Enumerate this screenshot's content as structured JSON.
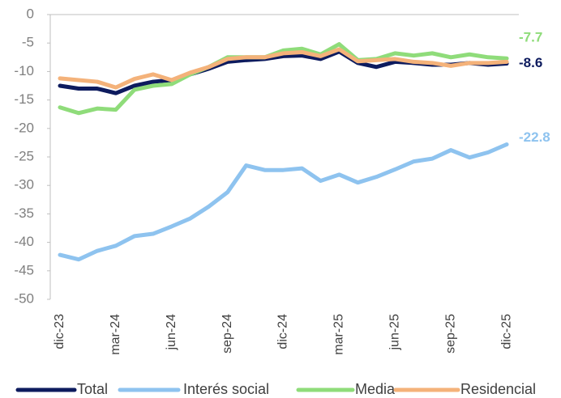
{
  "chart_data": {
    "type": "line",
    "categories": [
      "dic-23",
      null,
      null,
      "mar-24",
      null,
      null,
      "jun-24",
      null,
      null,
      "sep-24",
      null,
      null,
      "dic-24",
      null,
      null,
      "mar-25",
      null,
      null,
      "jun-25",
      null,
      null,
      "sep-25",
      null,
      null,
      "dic-25"
    ],
    "series": [
      {
        "name": "Total",
        "color": "#0d1b5e",
        "last_label": true,
        "values": [
          -12.5,
          -13,
          -13,
          -13.8,
          -12.5,
          -11.8,
          -11.5,
          -10.5,
          -9.5,
          -8.3,
          -8,
          -7.8,
          -7.3,
          -7.2,
          -7.8,
          -6.5,
          -8.5,
          -9.2,
          -8.3,
          -8.5,
          -8.8,
          -8.8,
          -8.5,
          -8.8,
          -8.6
        ]
      },
      {
        "name": "Interés social",
        "color": "#8ec3ef",
        "last_label": true,
        "values": [
          -42.2,
          -43,
          -41.5,
          -40.6,
          -38.9,
          -38.5,
          -37.2,
          -35.8,
          -33.7,
          -31.2,
          -26.5,
          -27.3,
          -27.3,
          -27,
          -29.2,
          -28.1,
          -29.5,
          -28.5,
          -27.2,
          -25.8,
          -25.3,
          -23.8,
          -25.1,
          -24.2,
          -22.8
        ]
      },
      {
        "name": "Media",
        "color": "#8fdc7a",
        "last_label": true,
        "values": [
          -16.3,
          -17.3,
          -16.5,
          -16.7,
          -13.2,
          -12.5,
          -12.2,
          -10.5,
          -9.2,
          -7.5,
          -7.5,
          -7.5,
          -6.3,
          -6,
          -7,
          -5.2,
          -8,
          -7.8,
          -6.8,
          -7.2,
          -6.8,
          -7.5,
          -7,
          -7.5,
          -7.7
        ]
      },
      {
        "name": "Residencial",
        "color": "#f4b27a",
        "last_label": false,
        "values": [
          -11.2,
          -11.5,
          -11.8,
          -12.8,
          -11.3,
          -10.5,
          -11.5,
          -10.2,
          -9.2,
          -7.8,
          -7.5,
          -7.5,
          -6.8,
          -6.6,
          -7.3,
          -6.1,
          -8.2,
          -8,
          -7.8,
          -8.3,
          -8.5,
          -9,
          -8.5,
          -8.5,
          -8.3
        ]
      }
    ],
    "ylim": [
      -50,
      0
    ],
    "yticks": [
      0,
      -5,
      -10,
      -15,
      -20,
      -25,
      -30,
      -35,
      -40,
      -45,
      -50
    ]
  }
}
